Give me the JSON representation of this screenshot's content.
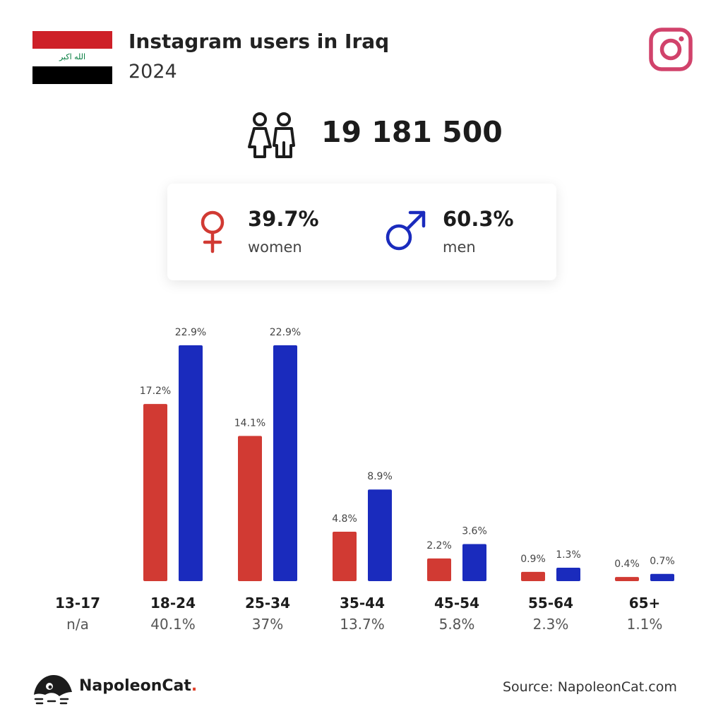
{
  "header": {
    "title": "Instagram users in Iraq",
    "year": "2024",
    "flag_text": "الله اكبر"
  },
  "total_users": "19 181 500",
  "gender": {
    "women_pct": "39.7%",
    "women_label": "women",
    "men_pct": "60.3%",
    "men_label": "men"
  },
  "colors": {
    "women": "#d13a33",
    "men": "#1a2bbd",
    "instagram": "#d1426b"
  },
  "footer": {
    "brand": "NapoleonCat",
    "brand_dot": ".",
    "source": "Source: NapoleonCat.com"
  },
  "chart_data": {
    "type": "bar",
    "categories": [
      "13-17",
      "18-24",
      "25-34",
      "35-44",
      "45-54",
      "55-64",
      "65+"
    ],
    "category_totals": [
      "n/a",
      "40.1%",
      "37%",
      "13.7%",
      "5.8%",
      "2.3%",
      "1.1%"
    ],
    "series": [
      {
        "name": "women",
        "values": [
          null,
          17.2,
          14.1,
          4.8,
          2.2,
          0.9,
          0.4
        ],
        "labels": [
          "",
          "17.2%",
          "14.1%",
          "4.8%",
          "2.2%",
          "0.9%",
          "0.4%"
        ]
      },
      {
        "name": "men",
        "values": [
          null,
          22.9,
          22.9,
          8.9,
          3.6,
          1.3,
          0.7
        ],
        "labels": [
          "",
          "22.9%",
          "22.9%",
          "8.9%",
          "3.6%",
          "1.3%",
          "0.7%"
        ]
      }
    ]
  }
}
